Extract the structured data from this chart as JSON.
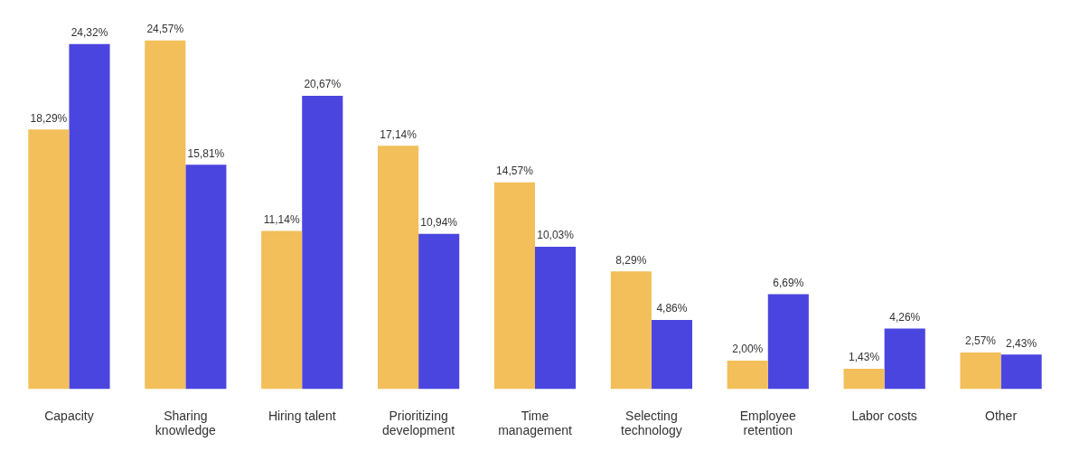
{
  "chart_data": {
    "type": "bar",
    "categories": [
      "Capacity",
      "Sharing\nknowledge",
      "Hiring talent",
      "Prioritizing\ndevelopment",
      "Time\nmanagement",
      "Selecting\ntechnology",
      "Employee\nretention",
      "Labor costs",
      "Other"
    ],
    "series": [
      {
        "color": "#f2bf5a",
        "values": [
          18.29,
          24.57,
          11.14,
          17.14,
          14.57,
          8.29,
          2.0,
          1.43,
          2.57
        ],
        "value_labels": [
          "18,29%",
          "24,57%",
          "11,14%",
          "17,14%",
          "14,57%",
          "8,29%",
          "2,00%",
          "1,43%",
          "2,57%"
        ]
      },
      {
        "color": "#4b45e0",
        "values": [
          24.32,
          15.81,
          20.67,
          10.94,
          10.03,
          4.86,
          6.69,
          4.26,
          2.43
        ],
        "value_labels": [
          "24,32%",
          "15,81%",
          "20,67%",
          "10,94%",
          "10,03%",
          "4,86%",
          "6,69%",
          "4,26%",
          "2,43%"
        ]
      }
    ],
    "grid": false,
    "legend": false
  }
}
